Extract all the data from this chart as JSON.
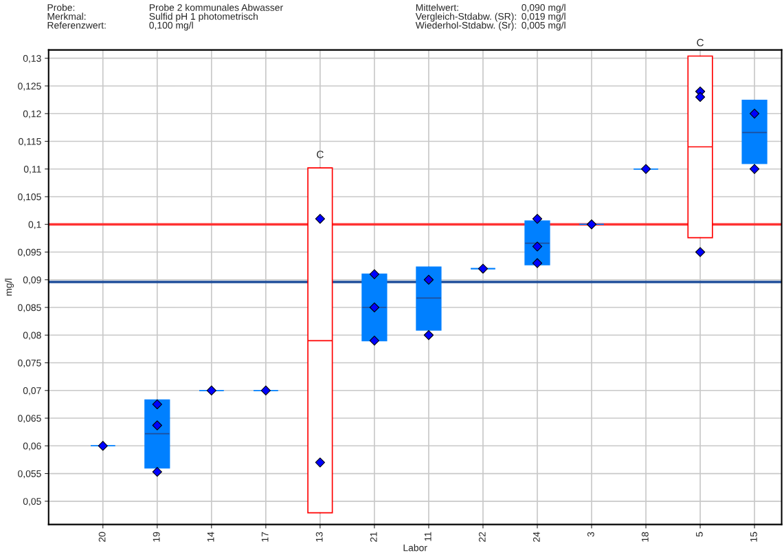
{
  "chart_data": {
    "type": "box",
    "xlabel": "Labor",
    "ylabel": "mg/l",
    "categories": [
      "20",
      "19",
      "14",
      "17",
      "13",
      "21",
      "11",
      "22",
      "24",
      "3",
      "18",
      "5",
      "15"
    ],
    "series": [
      {
        "color": "#0080ff",
        "boxes": [
          {
            "low": 0.06,
            "q1": 0.06,
            "median": 0.06,
            "q3": 0.06,
            "high": 0.06
          },
          {
            "low": 0.056,
            "q1": 0.056,
            "median": 0.0622,
            "q3": 0.0683,
            "high": 0.0683
          },
          {
            "low": 0.07,
            "q1": 0.07,
            "median": 0.07,
            "q3": 0.07,
            "high": 0.07
          },
          {
            "low": 0.07,
            "q1": 0.07,
            "median": 0.07,
            "q3": 0.07,
            "high": 0.07
          },
          null,
          {
            "low": 0.079,
            "q1": 0.079,
            "median": 0.085,
            "q3": 0.091,
            "high": 0.091
          },
          {
            "low": 0.0809,
            "q1": 0.0809,
            "median": 0.0867,
            "q3": 0.0923,
            "high": 0.0923
          },
          {
            "low": 0.092,
            "q1": 0.092,
            "median": 0.092,
            "q3": 0.092,
            "high": 0.092
          },
          {
            "low": 0.0927,
            "q1": 0.0927,
            "median": 0.0966,
            "q3": 0.1006,
            "high": 0.1006
          },
          {
            "low": 0.1,
            "q1": 0.1,
            "median": 0.1,
            "q3": 0.1,
            "high": 0.1
          },
          {
            "low": 0.11,
            "q1": 0.11,
            "median": 0.11,
            "q3": 0.11,
            "high": 0.11
          },
          null,
          {
            "low": 0.111,
            "q1": 0.111,
            "median": 0.1166,
            "q3": 0.1224,
            "high": 0.1224
          }
        ]
      },
      {
        "color": "#ff0000",
        "boxes": [
          null,
          null,
          null,
          null,
          {
            "low": 0.0479,
            "q1": 0.0479,
            "median": 0.079,
            "q3": 0.1102,
            "high": 0.1102
          },
          null,
          null,
          null,
          null,
          null,
          null,
          {
            "low": 0.0976,
            "q1": 0.0976,
            "median": 0.114,
            "q3": 0.1304,
            "high": 0.1304
          },
          null
        ]
      },
      {
        "type": "scatter",
        "color": "#0000ff",
        "marker": "diamond",
        "x": [
          "20",
          "19",
          "19",
          "19",
          "14",
          "17",
          "13",
          "13",
          "21",
          "21",
          "21",
          "11",
          "11",
          "22",
          "24",
          "24",
          "24",
          "3",
          "18",
          "5",
          "5",
          "5",
          "15",
          "15"
        ],
        "values": [
          0.06,
          0.0553,
          0.0637,
          0.0675,
          0.07,
          0.07,
          0.101,
          0.057,
          0.091,
          0.085,
          0.079,
          0.09,
          0.08,
          0.092,
          0.101,
          0.096,
          0.093,
          0.1,
          0.11,
          0.124,
          0.123,
          0.095,
          0.12,
          0.11
        ]
      }
    ],
    "ylim": [
      0.0458,
      0.1315
    ],
    "yticks": [
      {
        "value": 0.05,
        "label": "0,05"
      },
      {
        "value": 0.055,
        "label": "0,055"
      },
      {
        "value": 0.06,
        "label": "0,06"
      },
      {
        "value": 0.065,
        "label": "0,065"
      },
      {
        "value": 0.07,
        "label": "0,07"
      },
      {
        "value": 0.075,
        "label": "0,075"
      },
      {
        "value": 0.08,
        "label": "0,08"
      },
      {
        "value": 0.085,
        "label": "0,085"
      },
      {
        "value": 0.09,
        "label": "0,09"
      },
      {
        "value": 0.095,
        "label": "0,095"
      },
      {
        "value": 0.1,
        "label": "0,1"
      },
      {
        "value": 0.105,
        "label": "0,105"
      },
      {
        "value": 0.11,
        "label": "0,11"
      },
      {
        "value": 0.115,
        "label": "0,115"
      },
      {
        "value": 0.12,
        "label": "0,12"
      },
      {
        "value": 0.125,
        "label": "0,125"
      },
      {
        "value": 0.13,
        "label": "0,13"
      }
    ],
    "ref_lines": [
      {
        "axis": "y",
        "value": 0.1,
        "label": null,
        "color": "#ff3333"
      },
      {
        "axis": "y",
        "value": 0.0896,
        "label": null,
        "color": "#1f4e9a"
      }
    ],
    "grid": true,
    "annotations": [
      "Probe:",
      "Probe 2 kommunales Abwasser",
      "Mittelwert:",
      "0,090 mg/l",
      "Merkmal:",
      "Sulfid pH 1 photometrisch",
      "Vergleich-Stdabw. (SR):",
      "0,019 mg/l",
      "Referenzwert:",
      "0,100 mg/l",
      "Wiederhol-Stdabw. (Sr):",
      "0,005 mg/l",
      {
        "text": "C",
        "x": "13",
        "y": 0.1102
      },
      {
        "text": "C",
        "x": "5",
        "y": 0.1304
      }
    ]
  }
}
